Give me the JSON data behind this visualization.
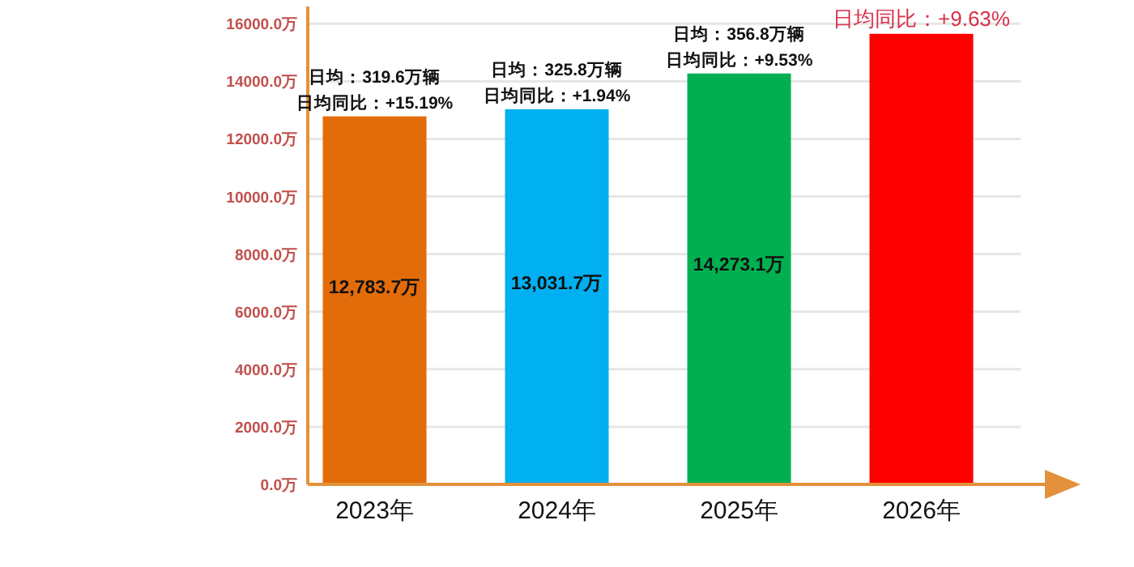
{
  "chart_data": {
    "type": "bar",
    "categories": [
      "2023年",
      "2024年",
      "2025年",
      "2026年"
    ],
    "values": [
      12783.7,
      13031.7,
      14273.1,
      15650
    ],
    "colors": [
      "#e36c0a",
      "#00b0f0",
      "#00b050",
      "#ff0000"
    ],
    "value_labels": [
      "12,783.7万",
      "13,031.7万",
      "14,273.1万",
      null
    ],
    "ylim": [
      0,
      16600
    ],
    "yticks": [
      {
        "value": 0,
        "label": "0.0万"
      },
      {
        "value": 2000,
        "label": "2000.0万"
      },
      {
        "value": 4000,
        "label": "4000.0万"
      },
      {
        "value": 6000,
        "label": "6000.0万"
      },
      {
        "value": 8000,
        "label": "8000.0万"
      },
      {
        "value": 10000,
        "label": "10000.0万"
      },
      {
        "value": 12000,
        "label": "12000.0万"
      },
      {
        "value": 14000,
        "label": "14000.0万"
      },
      {
        "value": 16000,
        "label": "16000.0万"
      }
    ],
    "grid": "y",
    "annotations": [
      {
        "text": "日均：319.6万辆",
        "x": "2023年",
        "y": 12783.7
      },
      {
        "text": "日均同比：+15.19%",
        "x": "2023年",
        "y": 12783.7
      },
      {
        "text": "日均：325.8万辆",
        "x": "2024年",
        "y": 13031.7
      },
      {
        "text": "日均同比：+1.94%",
        "x": "2024年",
        "y": 13031.7
      },
      {
        "text": "日均：356.8万辆",
        "x": "2025年",
        "y": 14273.1
      },
      {
        "text": "日均同比：+9.53%",
        "x": "2025年",
        "y": 14273.1
      },
      {
        "text": "日均同比：+9.63%",
        "x": "2026年",
        "y": 15650
      }
    ]
  }
}
